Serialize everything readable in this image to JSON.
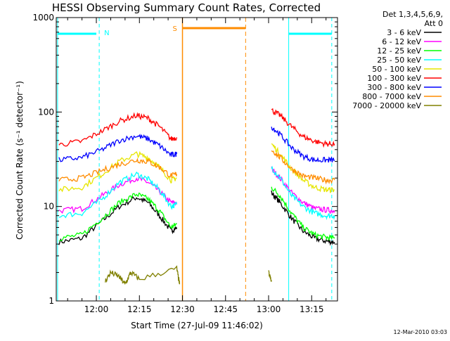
{
  "chart_data": {
    "type": "line",
    "title": "HESSI Observing Summary Count Rates, Corrected",
    "xlabel": "Start Time (27-Jul-09 11:46:02)",
    "ylabel": "Corrected Count Rate (s⁻¹ detector⁻¹)",
    "y_scale": "log",
    "ylim": [
      1,
      1000
    ],
    "xlim": [
      "11:46:02",
      "13:24:00"
    ],
    "x_ticks": [
      "12:00",
      "12:15",
      "12:30",
      "12:45",
      "13:00",
      "13:15"
    ],
    "y_ticks": [
      "1",
      "10",
      "100",
      "1000"
    ],
    "legend": {
      "header": [
        "Det 1,3,4,5,6,9,",
        "Att 0"
      ],
      "placement": "right"
    },
    "series": [
      {
        "name": "3 - 6 keV",
        "color": "#000000",
        "x": [
          "11:47",
          "11:55",
          "12:02",
          "12:08",
          "12:14",
          "12:18",
          "12:22",
          "12:26",
          "12:28",
          "13:01",
          "13:04",
          "13:08",
          "13:12",
          "13:16",
          "13:20",
          "13:23"
        ],
        "y": [
          4.2,
          4.6,
          7,
          10,
          12.5,
          11,
          8,
          5.5,
          6,
          14,
          11,
          7.5,
          5.5,
          4.6,
          4.3,
          4.2
        ]
      },
      {
        "name": "6 - 12 keV",
        "color": "#ff00ff",
        "x": [
          "11:47",
          "11:55",
          "12:02",
          "12:08",
          "12:14",
          "12:18",
          "12:22",
          "12:26",
          "12:28",
          "13:01",
          "13:04",
          "13:08",
          "13:12",
          "13:16",
          "13:20",
          "13:23"
        ],
        "y": [
          9,
          9.5,
          13,
          17,
          20,
          18,
          14.5,
          11,
          11,
          25,
          20,
          14,
          11,
          9.5,
          9.2,
          9
        ]
      },
      {
        "name": "12 - 25 keV",
        "color": "#00ff00",
        "x": [
          "11:47",
          "11:55",
          "12:02",
          "12:08",
          "12:14",
          "12:18",
          "12:22",
          "12:26",
          "12:28",
          "13:01",
          "13:04",
          "13:08",
          "13:12",
          "13:16",
          "13:20",
          "13:23"
        ],
        "y": [
          4.6,
          5,
          7.5,
          11,
          13.5,
          12,
          9,
          6,
          6.5,
          16,
          13,
          8.5,
          6,
          5,
          4.7,
          4.6
        ]
      },
      {
        "name": "25 - 50 keV",
        "color": "#00ffff",
        "x": [
          "11:47",
          "11:55",
          "12:02",
          "12:08",
          "12:14",
          "12:18",
          "12:22",
          "12:26",
          "12:28",
          "13:01",
          "13:04",
          "13:08",
          "13:12",
          "13:16",
          "13:20",
          "13:23"
        ],
        "y": [
          8,
          8.5,
          12,
          18,
          22,
          19.5,
          15,
          10,
          10.5,
          26,
          20,
          13,
          10,
          8.5,
          8,
          8
        ]
      },
      {
        "name": "50 - 100 keV",
        "color": "#e6e600",
        "x": [
          "11:47",
          "11:55",
          "12:02",
          "12:08",
          "12:14",
          "12:18",
          "12:22",
          "12:26",
          "12:28",
          "13:01",
          "13:04",
          "13:08",
          "13:12",
          "13:16",
          "13:20",
          "13:23"
        ],
        "y": [
          15,
          16,
          22,
          30,
          36,
          33,
          26,
          19,
          20,
          46,
          36,
          25,
          19,
          16,
          15,
          15
        ]
      },
      {
        "name": "100 - 300 keV",
        "color": "#ff0000",
        "x": [
          "11:47",
          "11:55",
          "12:02",
          "12:08",
          "12:14",
          "12:18",
          "12:22",
          "12:26",
          "12:28",
          "13:01",
          "13:04",
          "13:08",
          "13:12",
          "13:16",
          "13:20",
          "13:23"
        ],
        "y": [
          45,
          49,
          63,
          80,
          92,
          86,
          70,
          52,
          54,
          105,
          92,
          70,
          55,
          49,
          46,
          46
        ]
      },
      {
        "name": "300 - 800 keV",
        "color": "#0000ff",
        "x": [
          "11:47",
          "11:55",
          "12:02",
          "12:08",
          "12:14",
          "12:18",
          "12:22",
          "12:26",
          "12:28",
          "13:01",
          "13:04",
          "13:08",
          "13:12",
          "13:16",
          "13:20",
          "13:23"
        ],
        "y": [
          31,
          33,
          40,
          50,
          56,
          52,
          44,
          35,
          36,
          70,
          58,
          42,
          34,
          31,
          31,
          31
        ]
      },
      {
        "name": "800 - 7000 keV",
        "color": "#ff8c00",
        "x": [
          "11:47",
          "11:55",
          "12:02",
          "12:08",
          "12:14",
          "12:18",
          "12:22",
          "12:26",
          "12:28",
          "13:01",
          "13:04",
          "13:08",
          "13:12",
          "13:16",
          "13:20",
          "13:23"
        ],
        "y": [
          19,
          20,
          24,
          28,
          31,
          30,
          26,
          21,
          22,
          40,
          33,
          25,
          21,
          20,
          19,
          19
        ]
      },
      {
        "name": "7000 - 20000 keV",
        "color": "#808000",
        "x": [
          "12:03",
          "12:05",
          "12:08",
          "12:10",
          "12:12",
          "12:15",
          "12:28",
          "12:29",
          "13:00",
          "13:01"
        ],
        "y": [
          1.6,
          2,
          1.8,
          1.5,
          2,
          1.7,
          2.2,
          1.5,
          2,
          1.6
        ]
      }
    ],
    "annotations": [
      {
        "label": "N",
        "color": "#00ffff"
      },
      {
        "label": "S",
        "color": "#ff8c00"
      }
    ]
  },
  "footer": {
    "date": "12-Mar-2010 03:03"
  }
}
